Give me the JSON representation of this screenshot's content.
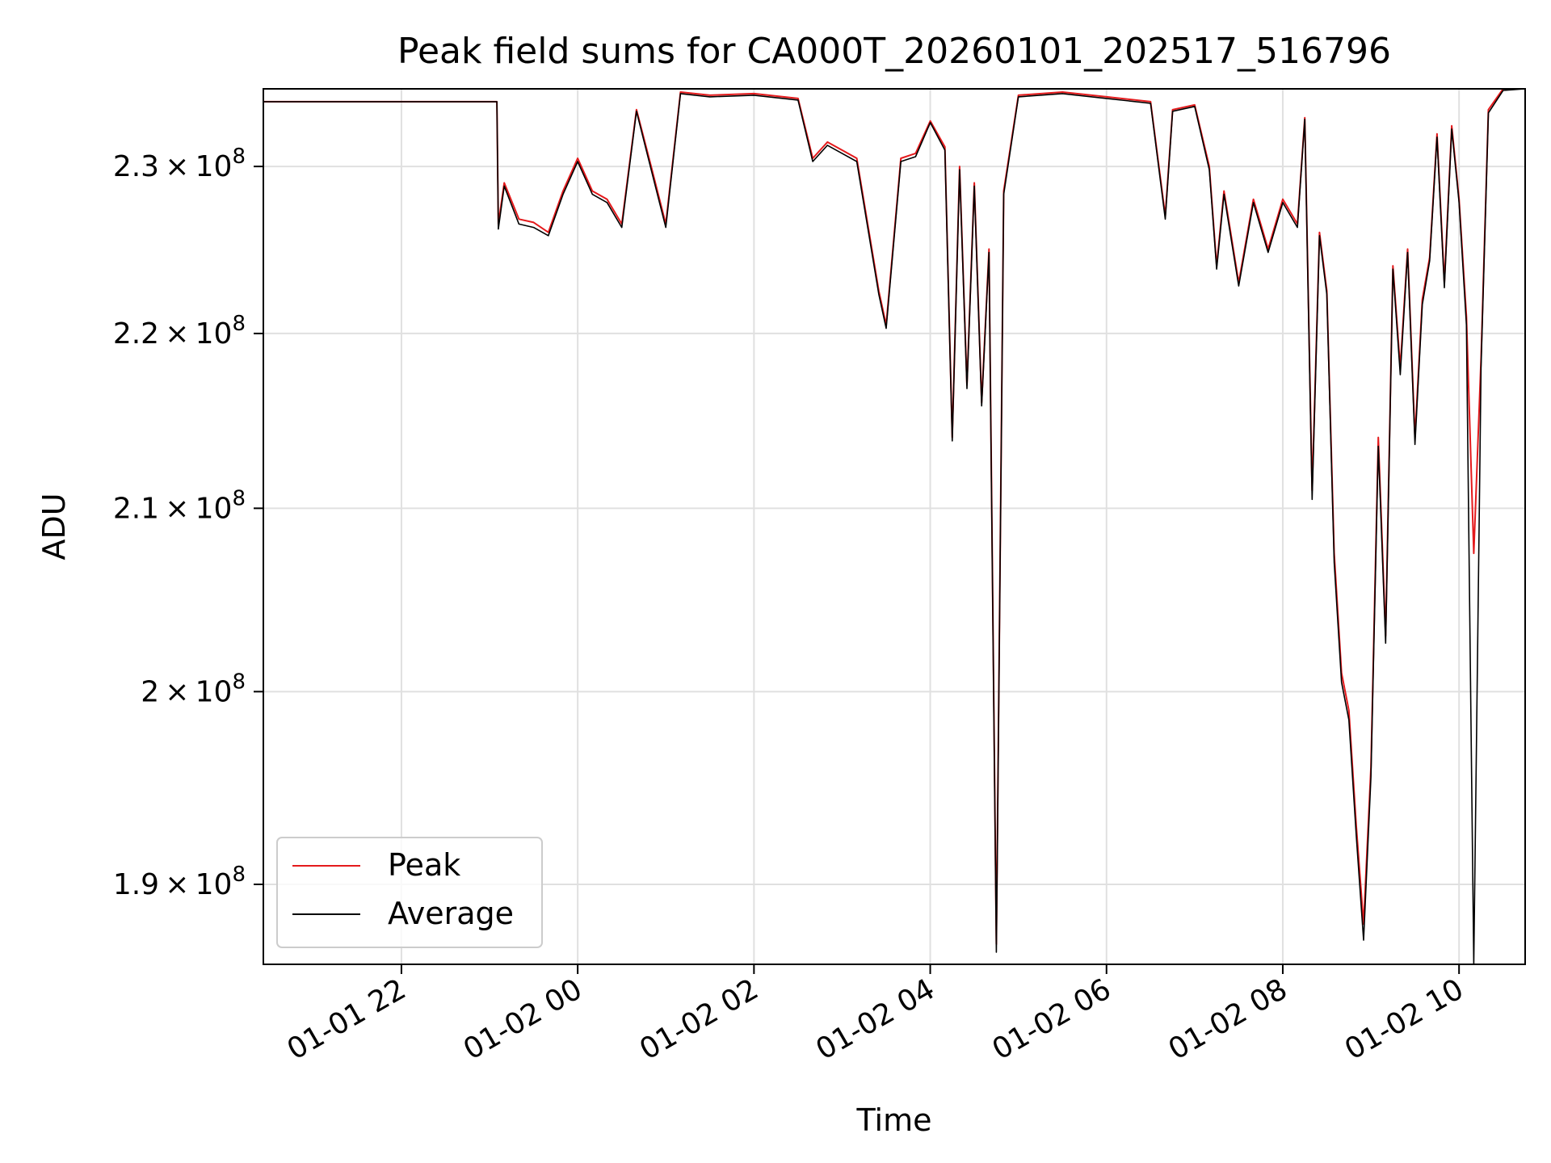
{
  "chart_data": {
    "type": "line",
    "title": "Peak field sums for CA000T_20260101_202517_516796",
    "xlabel": "Time",
    "ylabel": "ADU",
    "y_scale": "log",
    "x_range": [
      "2026-01-01 20:26",
      "2026-01-02 10:45"
    ],
    "ylim": [
      186000000,
      234800000
    ],
    "grid": true,
    "legend_position": "lower-left",
    "x_ticks": [
      {
        "value": "2026-01-01 22:00",
        "label": "01-01 22"
      },
      {
        "value": "2026-01-02 00:00",
        "label": "01-02 00"
      },
      {
        "value": "2026-01-02 02:00",
        "label": "01-02 02"
      },
      {
        "value": "2026-01-02 04:00",
        "label": "01-02 04"
      },
      {
        "value": "2026-01-02 06:00",
        "label": "01-02 06"
      },
      {
        "value": "2026-01-02 08:00",
        "label": "01-02 08"
      },
      {
        "value": "2026-01-02 10:00",
        "label": "01-02 10"
      }
    ],
    "y_ticks": [
      {
        "value": 190000000,
        "mantissa": "1.9",
        "base": "10",
        "exp": "8"
      },
      {
        "value": 200000000,
        "mantissa": "2",
        "base": "10",
        "exp": "8"
      },
      {
        "value": 210000000,
        "mantissa": "2.1",
        "base": "10",
        "exp": "8"
      },
      {
        "value": 220000000,
        "mantissa": "2.2",
        "base": "10",
        "exp": "8"
      },
      {
        "value": 230000000,
        "mantissa": "2.3",
        "base": "10",
        "exp": "8"
      }
    ],
    "series": [
      {
        "name": "Peak",
        "color": "#e41a1c",
        "points": [
          [
            "2026-01-01 20:26",
            234000000
          ],
          [
            "2026-01-01 23:05",
            234000000
          ],
          [
            "2026-01-01 23:06",
            226500000
          ],
          [
            "2026-01-01 23:10",
            229000000
          ],
          [
            "2026-01-01 23:20",
            226800000
          ],
          [
            "2026-01-01 23:30",
            226600000
          ],
          [
            "2026-01-01 23:40",
            226000000
          ],
          [
            "2026-01-01 23:50",
            228500000
          ],
          [
            "2026-01-02 00:00",
            230500000
          ],
          [
            "2026-01-02 00:10",
            228500000
          ],
          [
            "2026-01-02 00:20",
            228000000
          ],
          [
            "2026-01-02 00:30",
            226500000
          ],
          [
            "2026-01-02 00:40",
            233500000
          ],
          [
            "2026-01-02 00:50",
            230000000
          ],
          [
            "2026-01-02 01:00",
            226500000
          ],
          [
            "2026-01-02 01:10",
            234600000
          ],
          [
            "2026-01-02 01:30",
            234400000
          ],
          [
            "2026-01-02 02:00",
            234500000
          ],
          [
            "2026-01-02 02:30",
            234200000
          ],
          [
            "2026-01-02 02:40",
            230500000
          ],
          [
            "2026-01-02 02:50",
            231500000
          ],
          [
            "2026-01-02 03:00",
            231000000
          ],
          [
            "2026-01-02 03:10",
            230500000
          ],
          [
            "2026-01-02 03:25",
            222500000
          ],
          [
            "2026-01-02 03:30",
            220500000
          ],
          [
            "2026-01-02 03:40",
            230500000
          ],
          [
            "2026-01-02 03:50",
            230800000
          ],
          [
            "2026-01-02 04:00",
            232800000
          ],
          [
            "2026-01-02 04:10",
            231200000
          ],
          [
            "2026-01-02 04:12",
            224000000
          ],
          [
            "2026-01-02 04:15",
            214000000
          ],
          [
            "2026-01-02 04:20",
            230000000
          ],
          [
            "2026-01-02 04:25",
            217000000
          ],
          [
            "2026-01-02 04:30",
            229000000
          ],
          [
            "2026-01-02 04:35",
            216000000
          ],
          [
            "2026-01-02 04:40",
            225000000
          ],
          [
            "2026-01-02 04:45",
            187000000
          ],
          [
            "2026-01-02 04:50",
            228500000
          ],
          [
            "2026-01-02 05:00",
            234400000
          ],
          [
            "2026-01-02 05:30",
            234600000
          ],
          [
            "2026-01-02 06:00",
            234300000
          ],
          [
            "2026-01-02 06:30",
            234000000
          ],
          [
            "2026-01-02 06:40",
            227000000
          ],
          [
            "2026-01-02 06:45",
            233500000
          ],
          [
            "2026-01-02 07:00",
            233800000
          ],
          [
            "2026-01-02 07:10",
            230000000
          ],
          [
            "2026-01-02 07:15",
            224000000
          ],
          [
            "2026-01-02 07:20",
            228500000
          ],
          [
            "2026-01-02 07:30",
            223000000
          ],
          [
            "2026-01-02 07:40",
            228000000
          ],
          [
            "2026-01-02 07:50",
            225000000
          ],
          [
            "2026-01-02 08:00",
            228000000
          ],
          [
            "2026-01-02 08:10",
            226500000
          ],
          [
            "2026-01-02 08:15",
            233000000
          ],
          [
            "2026-01-02 08:20",
            211000000
          ],
          [
            "2026-01-02 08:25",
            226000000
          ],
          [
            "2026-01-02 08:30",
            222500000
          ],
          [
            "2026-01-02 08:35",
            207500000
          ],
          [
            "2026-01-02 08:40",
            201000000
          ],
          [
            "2026-01-02 08:45",
            199000000
          ],
          [
            "2026-01-02 08:50",
            193000000
          ],
          [
            "2026-01-02 08:55",
            188000000
          ],
          [
            "2026-01-02 09:00",
            196000000
          ],
          [
            "2026-01-02 09:05",
            214000000
          ],
          [
            "2026-01-02 09:10",
            203000000
          ],
          [
            "2026-01-02 09:15",
            224000000
          ],
          [
            "2026-01-02 09:20",
            218000000
          ],
          [
            "2026-01-02 09:25",
            225000000
          ],
          [
            "2026-01-02 09:30",
            214000000
          ],
          [
            "2026-01-02 09:35",
            222000000
          ],
          [
            "2026-01-02 09:40",
            224500000
          ],
          [
            "2026-01-02 09:45",
            232000000
          ],
          [
            "2026-01-02 09:50",
            223000000
          ],
          [
            "2026-01-02 09:55",
            232500000
          ],
          [
            "2026-01-02 10:00",
            228000000
          ],
          [
            "2026-01-02 10:05",
            221000000
          ],
          [
            "2026-01-02 10:10",
            207500000
          ],
          [
            "2026-01-02 10:15",
            218500000
          ],
          [
            "2026-01-02 10:20",
            233500000
          ],
          [
            "2026-01-02 10:30",
            234800000
          ],
          [
            "2026-01-02 10:45",
            234800000
          ]
        ]
      },
      {
        "name": "Average",
        "color": "#000000",
        "points": [
          [
            "2026-01-01 20:26",
            234000000
          ],
          [
            "2026-01-01 23:05",
            234000000
          ],
          [
            "2026-01-01 23:06",
            226200000
          ],
          [
            "2026-01-01 23:10",
            228800000
          ],
          [
            "2026-01-01 23:20",
            226500000
          ],
          [
            "2026-01-01 23:30",
            226300000
          ],
          [
            "2026-01-01 23:40",
            225800000
          ],
          [
            "2026-01-01 23:50",
            228300000
          ],
          [
            "2026-01-02 00:00",
            230300000
          ],
          [
            "2026-01-02 00:10",
            228300000
          ],
          [
            "2026-01-02 00:20",
            227800000
          ],
          [
            "2026-01-02 00:30",
            226300000
          ],
          [
            "2026-01-02 00:40",
            233400000
          ],
          [
            "2026-01-02 00:50",
            229800000
          ],
          [
            "2026-01-02 01:00",
            226300000
          ],
          [
            "2026-01-02 01:10",
            234500000
          ],
          [
            "2026-01-02 01:30",
            234300000
          ],
          [
            "2026-01-02 02:00",
            234400000
          ],
          [
            "2026-01-02 02:30",
            234100000
          ],
          [
            "2026-01-02 02:40",
            230300000
          ],
          [
            "2026-01-02 02:50",
            231300000
          ],
          [
            "2026-01-02 03:00",
            230800000
          ],
          [
            "2026-01-02 03:10",
            230300000
          ],
          [
            "2026-01-02 03:25",
            222300000
          ],
          [
            "2026-01-02 03:30",
            220300000
          ],
          [
            "2026-01-02 03:40",
            230300000
          ],
          [
            "2026-01-02 03:50",
            230600000
          ],
          [
            "2026-01-02 04:00",
            232700000
          ],
          [
            "2026-01-02 04:10",
            231000000
          ],
          [
            "2026-01-02 04:12",
            223800000
          ],
          [
            "2026-01-02 04:15",
            213800000
          ],
          [
            "2026-01-02 04:20",
            229800000
          ],
          [
            "2026-01-02 04:25",
            216800000
          ],
          [
            "2026-01-02 04:30",
            228800000
          ],
          [
            "2026-01-02 04:35",
            215800000
          ],
          [
            "2026-01-02 04:40",
            224800000
          ],
          [
            "2026-01-02 04:45",
            186600000
          ],
          [
            "2026-01-02 04:50",
            228300000
          ],
          [
            "2026-01-02 05:00",
            234300000
          ],
          [
            "2026-01-02 05:30",
            234500000
          ],
          [
            "2026-01-02 06:00",
            234200000
          ],
          [
            "2026-01-02 06:30",
            233900000
          ],
          [
            "2026-01-02 06:40",
            226800000
          ],
          [
            "2026-01-02 06:45",
            233400000
          ],
          [
            "2026-01-02 07:00",
            233700000
          ],
          [
            "2026-01-02 07:10",
            229800000
          ],
          [
            "2026-01-02 07:15",
            223800000
          ],
          [
            "2026-01-02 07:20",
            228300000
          ],
          [
            "2026-01-02 07:30",
            222800000
          ],
          [
            "2026-01-02 07:40",
            227800000
          ],
          [
            "2026-01-02 07:50",
            224800000
          ],
          [
            "2026-01-02 08:00",
            227800000
          ],
          [
            "2026-01-02 08:10",
            226300000
          ],
          [
            "2026-01-02 08:15",
            232900000
          ],
          [
            "2026-01-02 08:20",
            210500000
          ],
          [
            "2026-01-02 08:25",
            225800000
          ],
          [
            "2026-01-02 08:30",
            222300000
          ],
          [
            "2026-01-02 08:35",
            207000000
          ],
          [
            "2026-01-02 08:40",
            200500000
          ],
          [
            "2026-01-02 08:45",
            198500000
          ],
          [
            "2026-01-02 08:50",
            192500000
          ],
          [
            "2026-01-02 08:55",
            187200000
          ],
          [
            "2026-01-02 09:00",
            195500000
          ],
          [
            "2026-01-02 09:05",
            213500000
          ],
          [
            "2026-01-02 09:10",
            202600000
          ],
          [
            "2026-01-02 09:15",
            223800000
          ],
          [
            "2026-01-02 09:20",
            217600000
          ],
          [
            "2026-01-02 09:25",
            224800000
          ],
          [
            "2026-01-02 09:30",
            213600000
          ],
          [
            "2026-01-02 09:35",
            221700000
          ],
          [
            "2026-01-02 09:40",
            224300000
          ],
          [
            "2026-01-02 09:45",
            231800000
          ],
          [
            "2026-01-02 09:50",
            222700000
          ],
          [
            "2026-01-02 09:55",
            232300000
          ],
          [
            "2026-01-02 10:00",
            227800000
          ],
          [
            "2026-01-02 10:05",
            220500000
          ],
          [
            "2026-01-02 10:10",
            186000000
          ],
          [
            "2026-01-02 10:15",
            218000000
          ],
          [
            "2026-01-02 10:20",
            233300000
          ],
          [
            "2026-01-02 10:30",
            234700000
          ],
          [
            "2026-01-02 10:45",
            234800000
          ]
        ]
      }
    ]
  }
}
